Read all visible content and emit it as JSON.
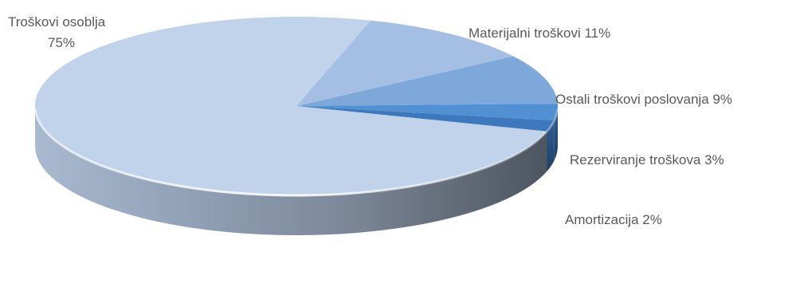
{
  "chart_data": {
    "type": "pie",
    "title": "",
    "style": "3d",
    "slices": [
      {
        "label": "Troškovi osoblja",
        "value": 75,
        "display": "75%",
        "color": "#c0d3ea"
      },
      {
        "label": "Materijalni troškovi",
        "value": 11,
        "display": "11%",
        "color": "#a4bfe3"
      },
      {
        "label": "Ostali troškovi poslovanja",
        "value": 9,
        "display": "9%",
        "color": "#7ea8da"
      },
      {
        "label": "Rezerviranje troškova",
        "value": 3,
        "display": "3%",
        "color": "#5190d2"
      },
      {
        "label": "Amortizacija",
        "value": 2,
        "display": "2%",
        "color": "#3d78bc"
      }
    ]
  }
}
